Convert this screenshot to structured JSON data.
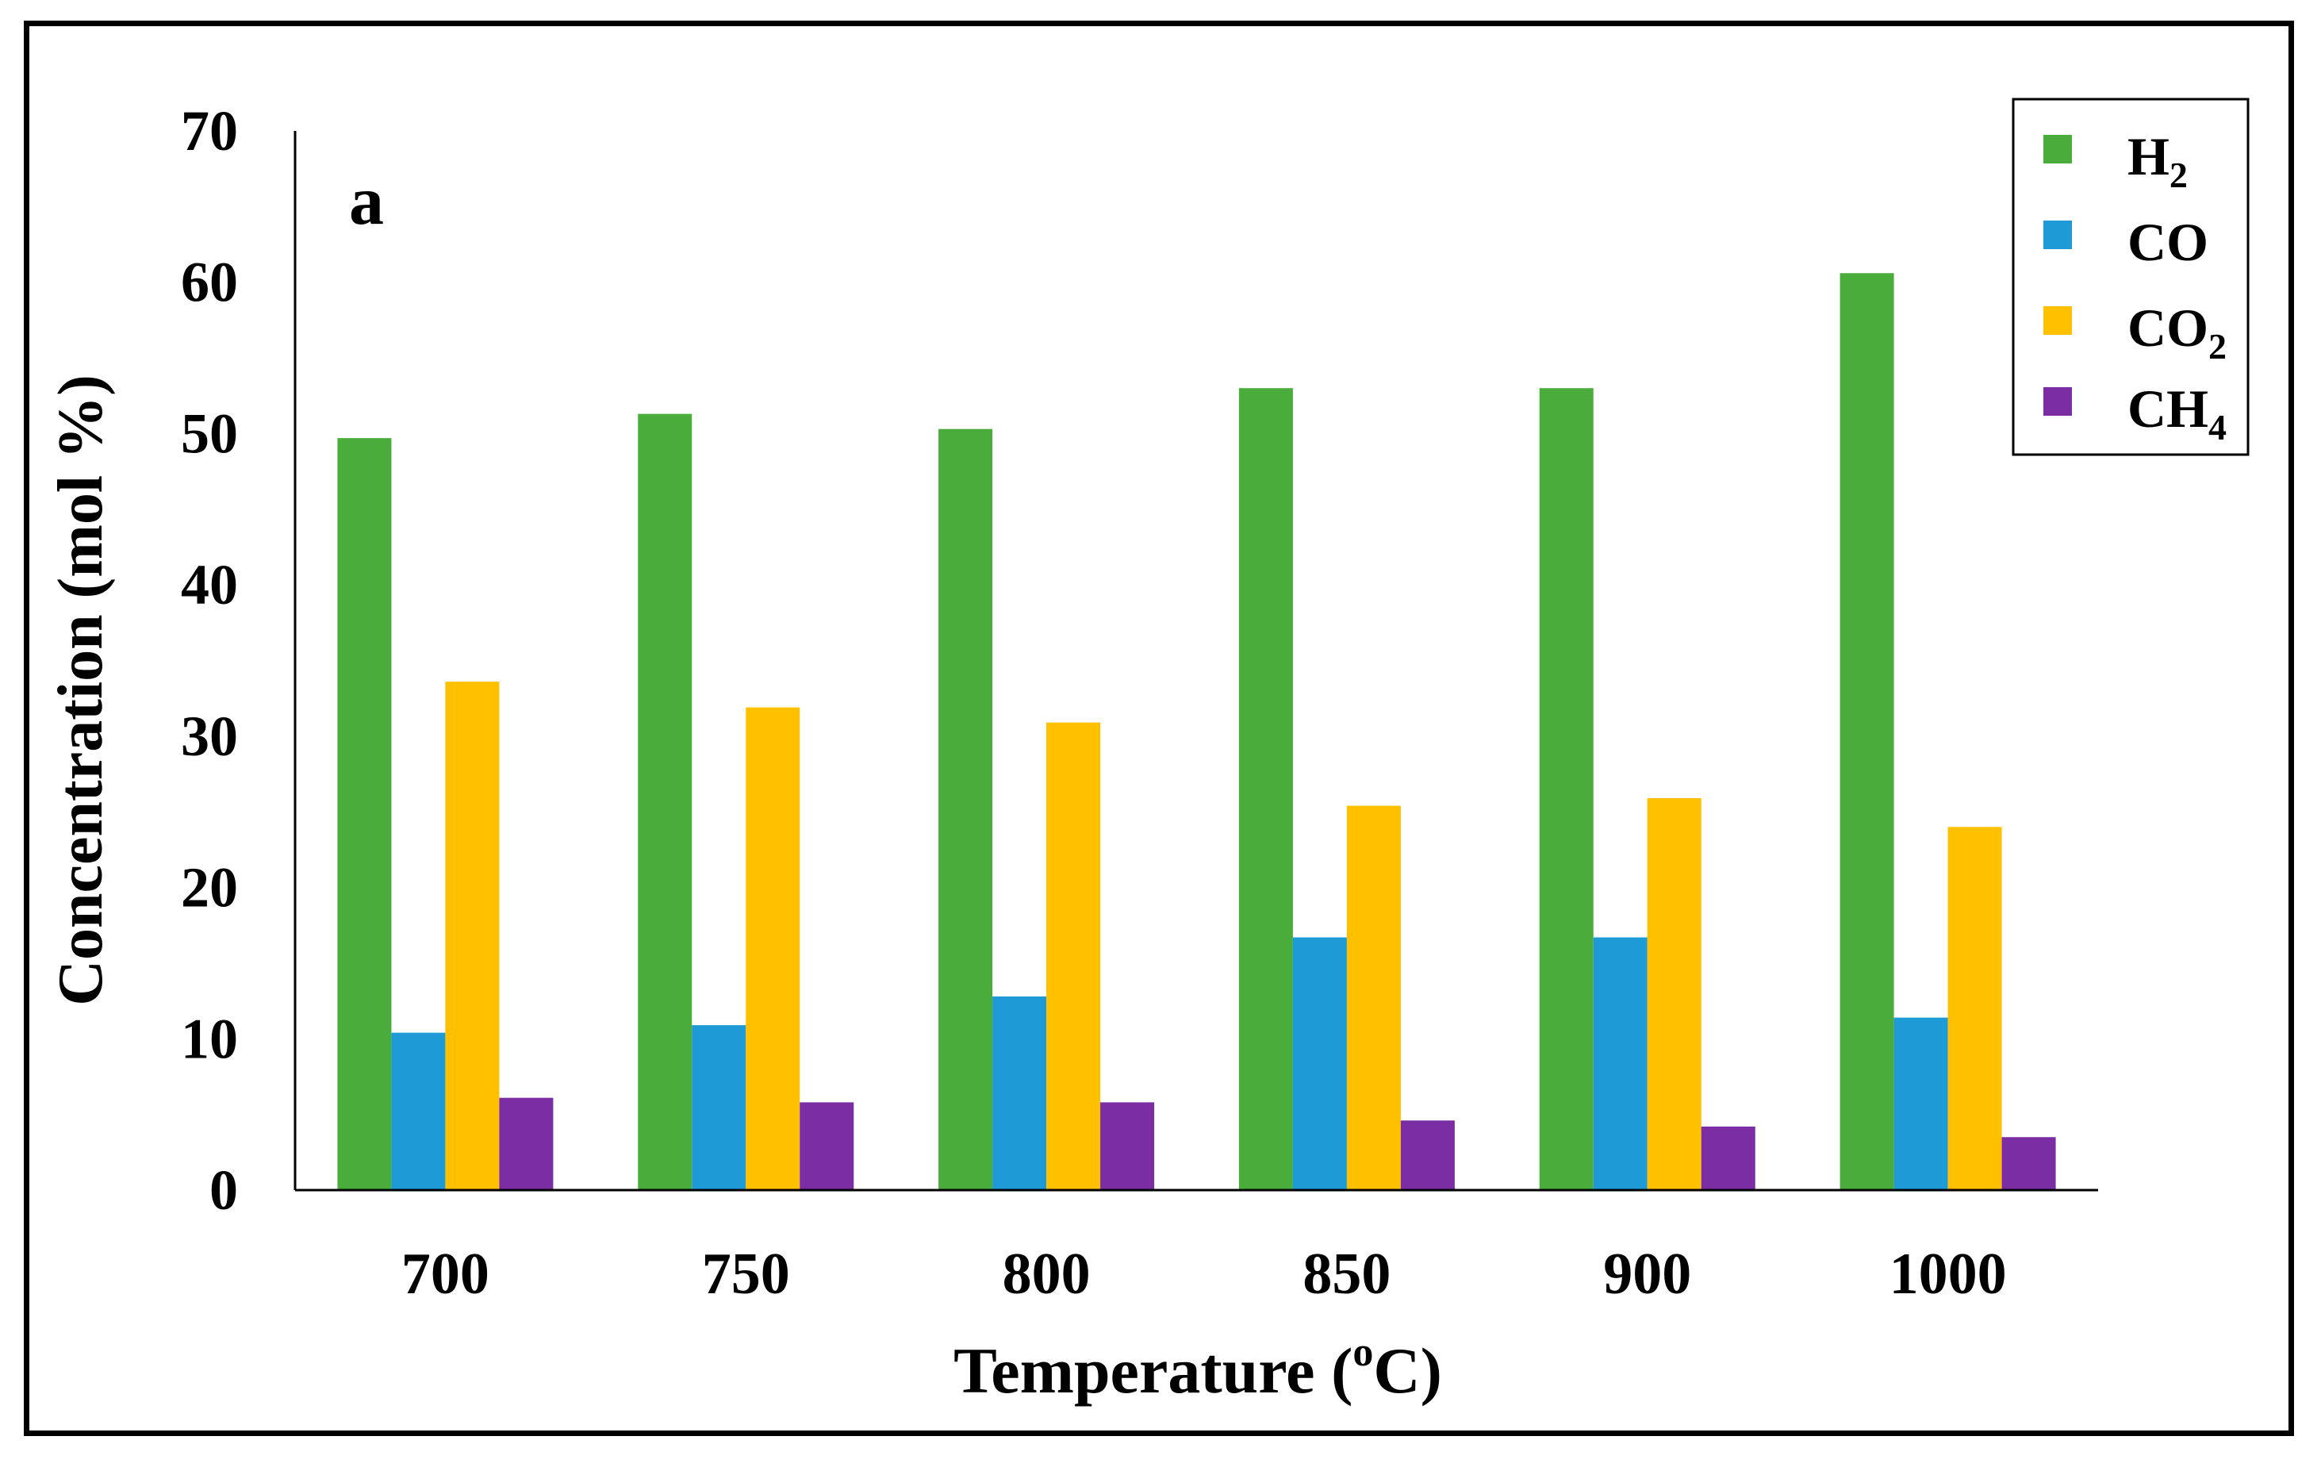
{
  "chart_data": {
    "type": "bar",
    "panel_label": "a",
    "xlabel": "Temperature (",
    "xlabel_sup": "o",
    "xlabel_end": "C)",
    "ylabel": "Concentration (mol %)",
    "categories": [
      "700",
      "750",
      "800",
      "850",
      "900",
      "1000"
    ],
    "ylim": [
      0,
      70
    ],
    "yticks": [
      "0",
      "10",
      "20",
      "30",
      "40",
      "50",
      "60",
      "70"
    ],
    "grid": false,
    "legend_position": "top-right",
    "series": [
      {
        "name": "H",
        "sub": "2",
        "color": "#4aad3b",
        "values": [
          49.7,
          51.3,
          50.3,
          53.0,
          53.0,
          60.6
        ]
      },
      {
        "name": "CO",
        "sub": "",
        "color": "#1e9bd7",
        "values": [
          10.4,
          10.9,
          12.8,
          16.7,
          16.7,
          11.4
        ]
      },
      {
        "name": "CO",
        "sub": "2",
        "color": "#ffc000",
        "values": [
          33.6,
          31.9,
          30.9,
          25.4,
          25.9,
          24.0
        ]
      },
      {
        "name": "CH",
        "sub": "4",
        "color": "#7b2ea3",
        "values": [
          6.1,
          5.8,
          5.8,
          4.6,
          4.2,
          3.5
        ]
      }
    ]
  }
}
